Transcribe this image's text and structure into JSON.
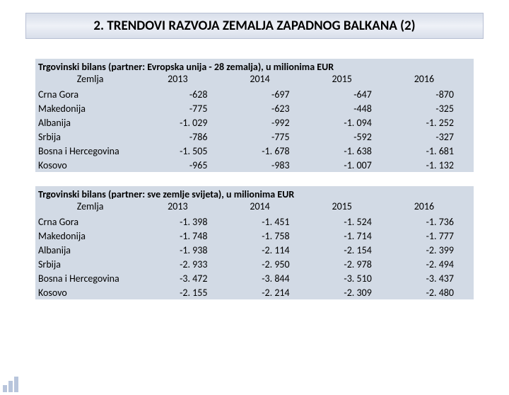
{
  "title": "2. TRENDOVI RAZVOJA ZEMALJA ZAPADNOG BALKANA (2)",
  "colors": {
    "table_bg": "#d2dae5",
    "title_grad_top": "#d8deea",
    "title_grad_mid": "#eef1f7",
    "title_border": "#b8c0d4",
    "page_bg": "#ffffff",
    "text": "#000000",
    "watermark_bar": "#b8c5dc"
  },
  "table1": {
    "caption": "Trgovinski bilans (partner: Evropska unija - 28 zemalja), u milionima EUR",
    "columns": [
      "Zemlja",
      "2013",
      "2014",
      "2015",
      "2016"
    ],
    "rows": [
      [
        "Crna Gora",
        "-628",
        "-697",
        "-647",
        "-870"
      ],
      [
        "Makedonija",
        "-775",
        "-623",
        "-448",
        "-325"
      ],
      [
        "Albanija",
        "-1. 029",
        "-992",
        "-1. 094",
        "-1. 252"
      ],
      [
        "Srbija",
        "-786",
        "-775",
        "-592",
        "-327"
      ],
      [
        "Bosna i Hercegovina",
        "-1. 505",
        "-1. 678",
        "-1. 638",
        "-1. 681"
      ],
      [
        "Kosovo",
        "-965",
        "-983",
        "-1. 007",
        "-1. 132"
      ]
    ]
  },
  "table2": {
    "caption": "Trgovinski bilans (partner: sve zemlje svijeta), u milionima EUR",
    "columns": [
      "Zemlja",
      "2013",
      "2014",
      "2015",
      "2016"
    ],
    "rows": [
      [
        "Crna Gora",
        "-1. 398",
        "-1. 451",
        "-1. 524",
        "-1. 736"
      ],
      [
        "Makedonija",
        "-1. 748",
        "-1. 758",
        "-1. 714",
        "-1. 777"
      ],
      [
        "Albanija",
        "-1. 938",
        "-2. 114",
        "-2. 154",
        "-2. 399"
      ],
      [
        "Srbija",
        "-2. 933",
        "-2. 950",
        "-2. 978",
        "-2. 494"
      ],
      [
        "Bosna i Hercegovina",
        "-3. 472",
        "-3. 844",
        "-3. 510",
        "-3. 437"
      ],
      [
        "Kosovo",
        "-2. 155",
        "-2. 214",
        "-2. 309",
        "-2. 480"
      ]
    ]
  }
}
